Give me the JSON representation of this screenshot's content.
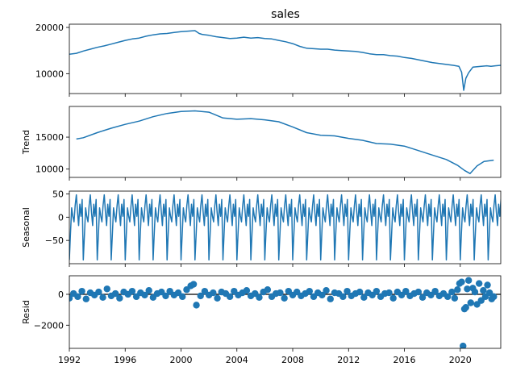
{
  "chart_data": {
    "type": "line",
    "title": "sales",
    "x_ticks": [
      "1992",
      "1996",
      "2000",
      "2004",
      "2008",
      "2012",
      "2016",
      "2020"
    ],
    "xlim": [
      1992,
      2022.9
    ],
    "colors": {
      "line": "#1f77b4",
      "marker": "#1f77b4",
      "zero_line": "#000000",
      "frame": "#000000"
    },
    "panels": [
      {
        "key": "observed",
        "ylabel": "",
        "type": "line",
        "ylim": [
          5700,
          20700
        ],
        "y_ticks": [
          {
            "value": 10000,
            "label": "10000"
          },
          {
            "value": 20000,
            "label": "20000"
          }
        ],
        "x": [
          1992.0,
          1992.5,
          1993.0,
          1993.5,
          1994.0,
          1994.5,
          1995.0,
          1995.5,
          1996.0,
          1996.5,
          1997.0,
          1997.5,
          1998.0,
          1998.5,
          1999.0,
          1999.5,
          2000.0,
          2000.5,
          2001.0,
          2001.3,
          2001.5,
          2002.0,
          2002.5,
          2003.0,
          2003.5,
          2004.0,
          2004.5,
          2005.0,
          2005.5,
          2006.0,
          2006.5,
          2007.0,
          2007.5,
          2008.0,
          2008.5,
          2009.0,
          2009.5,
          2010.0,
          2010.5,
          2011.0,
          2011.5,
          2012.0,
          2012.5,
          2013.0,
          2013.5,
          2014.0,
          2014.5,
          2015.0,
          2015.5,
          2016.0,
          2016.5,
          2017.0,
          2017.5,
          2018.0,
          2018.5,
          2019.0,
          2019.5,
          2019.9,
          2020.1,
          2020.25,
          2020.4,
          2020.6,
          2020.9,
          2021.2,
          2021.5,
          2021.9,
          2022.2,
          2022.5,
          2022.9
        ],
        "values": [
          14200,
          14400,
          14900,
          15300,
          15700,
          16000,
          16400,
          16800,
          17200,
          17500,
          17700,
          18100,
          18400,
          18600,
          18700,
          18900,
          19100,
          19200,
          19300,
          18700,
          18500,
          18300,
          18000,
          17800,
          17600,
          17700,
          17900,
          17700,
          17800,
          17600,
          17500,
          17200,
          16900,
          16500,
          15900,
          15500,
          15400,
          15300,
          15300,
          15100,
          15000,
          14900,
          14800,
          14600,
          14300,
          14100,
          14100,
          13900,
          13800,
          13500,
          13300,
          13000,
          12700,
          12400,
          12200,
          12000,
          11800,
          11600,
          10300,
          6400,
          9000,
          10200,
          11400,
          11500,
          11600,
          11700,
          11600,
          11700,
          11800
        ]
      },
      {
        "key": "trend",
        "ylabel": "Trend",
        "type": "line",
        "ylim": [
          8700,
          19800
        ],
        "y_ticks": [
          {
            "value": 10000,
            "label": "10000"
          },
          {
            "value": 15000,
            "label": "15000"
          }
        ],
        "x": [
          1992.5,
          1993.0,
          1994.0,
          1995.0,
          1996.0,
          1997.0,
          1998.0,
          1999.0,
          2000.0,
          2001.0,
          2002.0,
          2003.0,
          2004.0,
          2005.0,
          2006.0,
          2007.0,
          2008.0,
          2009.0,
          2010.0,
          2011.0,
          2012.0,
          2013.0,
          2014.0,
          2015.0,
          2016.0,
          2017.0,
          2018.0,
          2019.0,
          2019.8,
          2020.3,
          2020.7,
          2021.2,
          2021.7,
          2022.4
        ],
        "values": [
          14700,
          14900,
          15700,
          16400,
          17000,
          17500,
          18200,
          18700,
          19000,
          19100,
          18900,
          18000,
          17800,
          17900,
          17700,
          17400,
          16600,
          15700,
          15300,
          15200,
          14800,
          14500,
          14000,
          13900,
          13600,
          12900,
          12200,
          11500,
          10600,
          9800,
          9300,
          10500,
          11200,
          11400
        ]
      },
      {
        "key": "seasonal",
        "ylabel": "Seasonal",
        "type": "line",
        "ylim": [
          -100,
          56
        ],
        "y_ticks": [
          {
            "value": -50,
            "label": "−50"
          },
          {
            "value": 0,
            "label": "0"
          },
          {
            "value": 50,
            "label": "50"
          }
        ],
        "period_start": 1992.0,
        "period_values": [
          -92,
          -35,
          20,
          2,
          -10,
          25,
          48,
          12,
          -18,
          28,
          2,
          38
        ]
      },
      {
        "key": "resid",
        "ylabel": "Resid",
        "type": "scatter",
        "ylim": [
          -3500,
          1200
        ],
        "y_ticks": [
          {
            "value": -2000,
            "label": "−2000"
          },
          {
            "value": 0,
            "label": "0"
          }
        ],
        "x": [
          1992.0,
          1992.3,
          1992.6,
          1992.9,
          1993.2,
          1993.5,
          1993.8,
          1994.1,
          1994.4,
          1994.7,
          1995.0,
          1995.3,
          1995.6,
          1995.9,
          1996.2,
          1996.5,
          1996.8,
          1997.1,
          1997.4,
          1997.7,
          1998.0,
          1998.3,
          1998.6,
          1998.9,
          1999.2,
          1999.5,
          1999.8,
          2000.1,
          2000.4,
          2000.7,
          2000.9,
          2001.1,
          2001.4,
          2001.7,
          2002.0,
          2002.3,
          2002.6,
          2002.9,
          2003.2,
          2003.5,
          2003.8,
          2004.1,
          2004.4,
          2004.7,
          2005.0,
          2005.3,
          2005.6,
          2005.9,
          2006.2,
          2006.5,
          2006.8,
          2007.1,
          2007.4,
          2007.7,
          2008.0,
          2008.3,
          2008.6,
          2008.9,
          2009.2,
          2009.5,
          2009.8,
          2010.1,
          2010.4,
          2010.7,
          2011.0,
          2011.3,
          2011.6,
          2011.9,
          2012.2,
          2012.5,
          2012.8,
          2013.1,
          2013.4,
          2013.7,
          2014.0,
          2014.3,
          2014.6,
          2014.9,
          2015.2,
          2015.5,
          2015.8,
          2016.1,
          2016.4,
          2016.7,
          2017.0,
          2017.3,
          2017.6,
          2017.9,
          2018.2,
          2018.5,
          2018.8,
          2019.1,
          2019.4,
          2019.6,
          2019.8,
          2019.95,
          2020.1,
          2020.2,
          2020.3,
          2020.4,
          2020.5,
          2020.6,
          2020.75,
          2020.9,
          2021.05,
          2021.2,
          2021.35,
          2021.5,
          2021.65,
          2021.8,
          2021.95,
          2022.1,
          2022.25,
          2022.4
        ],
        "values": [
          -250,
          50,
          -150,
          200,
          -300,
          100,
          -50,
          150,
          -200,
          350,
          -100,
          50,
          -250,
          150,
          0,
          200,
          -150,
          100,
          -50,
          250,
          -200,
          50,
          150,
          -100,
          200,
          -50,
          100,
          -150,
          300,
          550,
          650,
          -700,
          -100,
          200,
          -50,
          100,
          -250,
          150,
          50,
          -150,
          200,
          -50,
          100,
          250,
          -100,
          50,
          -200,
          150,
          300,
          -150,
          50,
          100,
          -250,
          200,
          -50,
          150,
          -100,
          50,
          200,
          -150,
          100,
          -50,
          250,
          -300,
          100,
          50,
          -150,
          200,
          -100,
          50,
          150,
          -200,
          100,
          -50,
          200,
          -150,
          50,
          100,
          -250,
          150,
          -50,
          200,
          -100,
          50,
          150,
          -200,
          100,
          -50,
          200,
          -100,
          50,
          -150,
          150,
          -250,
          300,
          700,
          800,
          -3350,
          -950,
          -850,
          350,
          900,
          -550,
          400,
          150,
          -650,
          700,
          -400,
          250,
          -150,
          600,
          100,
          -300,
          -150
        ]
      }
    ]
  }
}
